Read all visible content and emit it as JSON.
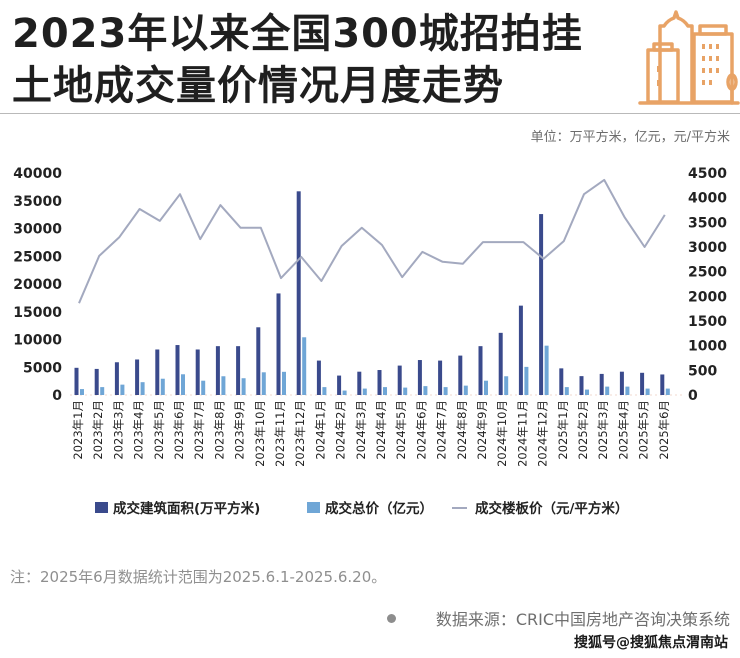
{
  "header": {
    "title_line1": "2023年以来全国300城招拍挂",
    "title_line2": "土地成交量价情况月度走势",
    "icon": "city-buildings-icon",
    "icon_color": "#E8A366",
    "units": "单位：万平方米，亿元，元/平方米"
  },
  "colors": {
    "area_bar": "#3A4A8C",
    "total_bar": "#6FA6D6",
    "price_line": "#A3A9BF"
  },
  "chart_data": {
    "type": "bar+line",
    "title": "2023年以来全国300城招拍挂土地成交量价情况月度走势",
    "categories": [
      "2023年1月",
      "2023年2月",
      "2023年3月",
      "2023年4月",
      "2023年5月",
      "2023年6月",
      "2023年7月",
      "2023年8月",
      "2023年9月",
      "2023年10月",
      "2023年11月",
      "2023年12月",
      "2024年1月",
      "2024年2月",
      "2024年3月",
      "2024年4月",
      "2024年5月",
      "2024年6月",
      "2024年7月",
      "2024年8月",
      "2024年9月",
      "2024年10月",
      "2024年11月",
      "2024年12月",
      "2025年1月",
      "2025年2月",
      "2025年3月",
      "2025年4月",
      "2025年5月",
      "2025年6月"
    ],
    "left_axis": {
      "ylim": [
        0,
        40000
      ],
      "ticks": [
        "0",
        "5000",
        "10000",
        "15000",
        "20000",
        "25000",
        "30000",
        "35000",
        "40000"
      ]
    },
    "right_axis": {
      "ylim": [
        0,
        4500
      ],
      "ticks": [
        "0",
        "500",
        "1000",
        "1500",
        "2000",
        "2500",
        "3000",
        "3500",
        "4000",
        "4500"
      ]
    },
    "grid": false,
    "legend_position": "bottom",
    "series": [
      {
        "name": "成交建筑面积(万平方米)",
        "type": "bar",
        "axis": "left",
        "values": [
          4900,
          4700,
          5900,
          6400,
          8200,
          9000,
          8200,
          8800,
          8800,
          12200,
          18300,
          36700,
          6200,
          3500,
          4200,
          4500,
          5300,
          6300,
          6200,
          7100,
          8800,
          11200,
          16100,
          32600,
          4800,
          3400,
          3800,
          4200,
          4000,
          3700
        ]
      },
      {
        "name": "成交总价（亿元）",
        "type": "bar",
        "axis": "right",
        "values": [
          120,
          160,
          210,
          260,
          330,
          420,
          290,
          380,
          340,
          460,
          470,
          1170,
          160,
          90,
          130,
          160,
          150,
          180,
          160,
          190,
          290,
          380,
          570,
          1000,
          160,
          110,
          170,
          170,
          130,
          130
        ]
      },
      {
        "name": "成交楼板价（元/平方米）",
        "type": "line",
        "axis": "right",
        "values": [
          1860,
          2820,
          3200,
          3770,
          3530,
          4070,
          3160,
          3850,
          3390,
          3390,
          2370,
          2800,
          2310,
          3020,
          3390,
          3040,
          2390,
          2900,
          2700,
          2660,
          3100,
          3100,
          3100,
          2760,
          3120,
          4070,
          4360,
          3610,
          3000,
          3650
        ]
      }
    ]
  },
  "footer": {
    "note": "注：2025年6月数据统计范围为2025.6.1-2025.6.20。",
    "source": "数据来源：CRIC中国房地产咨询决策系统",
    "watermark": "搜狐号@搜狐焦点渭南站"
  }
}
